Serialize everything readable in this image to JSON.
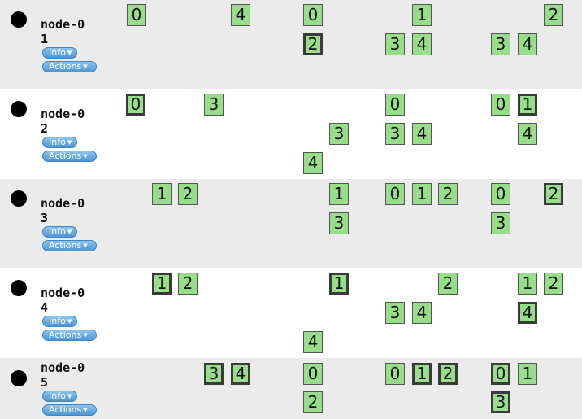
{
  "rows": [
    {
      "name": "node-01",
      "info_label": "Info",
      "actions_label": "Actions",
      "cells": [
        {
          "label": "0",
          "selected": false
        },
        {
          "label": "4",
          "selected": false
        },
        {
          "label": "0",
          "selected": false
        },
        {
          "label": "1",
          "selected": false
        },
        {
          "label": "2",
          "selected": false
        },
        {
          "label": "2",
          "selected": true
        },
        {
          "label": "3",
          "selected": false
        },
        {
          "label": "4",
          "selected": false
        },
        {
          "label": "3",
          "selected": false
        },
        {
          "label": "4",
          "selected": false
        }
      ]
    },
    {
      "name": "node-02",
      "info_label": "Info",
      "actions_label": "Actions",
      "cells": [
        {
          "label": "0",
          "selected": true
        },
        {
          "label": "3",
          "selected": false
        },
        {
          "label": "0",
          "selected": false
        },
        {
          "label": "0",
          "selected": false
        },
        {
          "label": "1",
          "selected": true
        },
        {
          "label": "3",
          "selected": false
        },
        {
          "label": "3",
          "selected": false
        },
        {
          "label": "4",
          "selected": false
        },
        {
          "label": "4",
          "selected": false
        },
        {
          "label": "4",
          "selected": false
        }
      ]
    },
    {
      "name": "node-03",
      "info_label": "Info",
      "actions_label": "Actions",
      "cells": [
        {
          "label": "1",
          "selected": false
        },
        {
          "label": "2",
          "selected": false
        },
        {
          "label": "1",
          "selected": false
        },
        {
          "label": "0",
          "selected": false
        },
        {
          "label": "1",
          "selected": false
        },
        {
          "label": "2",
          "selected": false
        },
        {
          "label": "0",
          "selected": false
        },
        {
          "label": "2",
          "selected": true
        },
        {
          "label": "3",
          "selected": false
        },
        {
          "label": "3",
          "selected": false
        }
      ]
    },
    {
      "name": "node-04",
      "info_label": "Info",
      "actions_label": "Actions",
      "cells": [
        {
          "label": "1",
          "selected": true
        },
        {
          "label": "2",
          "selected": false
        },
        {
          "label": "1",
          "selected": true
        },
        {
          "label": "2",
          "selected": false
        },
        {
          "label": "1",
          "selected": false
        },
        {
          "label": "2",
          "selected": false
        },
        {
          "label": "3",
          "selected": false
        },
        {
          "label": "4",
          "selected": false
        },
        {
          "label": "4",
          "selected": true
        },
        {
          "label": "4",
          "selected": false
        }
      ]
    },
    {
      "name": "node-05",
      "info_label": "Info",
      "actions_label": "Actions",
      "cells": [
        {
          "label": "3",
          "selected": true
        },
        {
          "label": "4",
          "selected": true
        },
        {
          "label": "0",
          "selected": false
        },
        {
          "label": "0",
          "selected": false
        },
        {
          "label": "1",
          "selected": true
        },
        {
          "label": "2",
          "selected": true
        },
        {
          "label": "0",
          "selected": true
        },
        {
          "label": "1",
          "selected": false
        },
        {
          "label": "2",
          "selected": false
        },
        {
          "label": "3",
          "selected": true
        }
      ]
    }
  ]
}
